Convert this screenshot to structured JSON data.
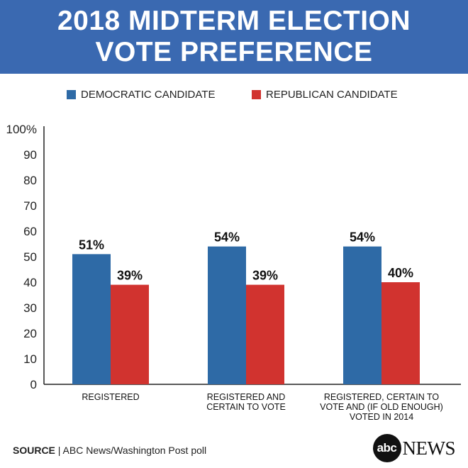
{
  "header": {
    "line1": "2018 MIDTERM ELECTION",
    "line2": "VOTE PREFERENCE"
  },
  "footer": {
    "source_label": "SOURCE",
    "source_text": "| ABC News/Washington Post poll"
  },
  "logo": {
    "mark": "abc",
    "text": "NEWS"
  },
  "colors": {
    "header_bg": "#3a69b1",
    "democratic": "#2e6aa6",
    "republican": "#d1332f"
  },
  "chart_data": {
    "type": "bar",
    "title": "2018 MIDTERM ELECTION VOTE PREFERENCE",
    "categories": [
      [
        "REGISTERED"
      ],
      [
        "REGISTERED AND",
        "CERTAIN TO VOTE"
      ],
      [
        "REGISTERED, CERTAIN TO",
        "VOTE AND (IF OLD ENOUGH)",
        "VOTED IN 2014"
      ]
    ],
    "series": [
      {
        "name": "DEMOCRATIC CANDIDATE",
        "values": [
          51,
          54,
          54
        ],
        "labels": [
          "51%",
          "54%",
          "54%"
        ],
        "color": "#2e6aa6"
      },
      {
        "name": "REPUBLICAN CANDIDATE",
        "values": [
          39,
          39,
          40
        ],
        "labels": [
          "39%",
          "39%",
          "40%"
        ],
        "color": "#d1332f"
      }
    ],
    "ylim": [
      0,
      100
    ],
    "yticks": [
      "0",
      "10",
      "20",
      "30",
      "40",
      "50",
      "60",
      "70",
      "80",
      "90",
      "100%"
    ],
    "legend_position": "top",
    "grid": false
  }
}
